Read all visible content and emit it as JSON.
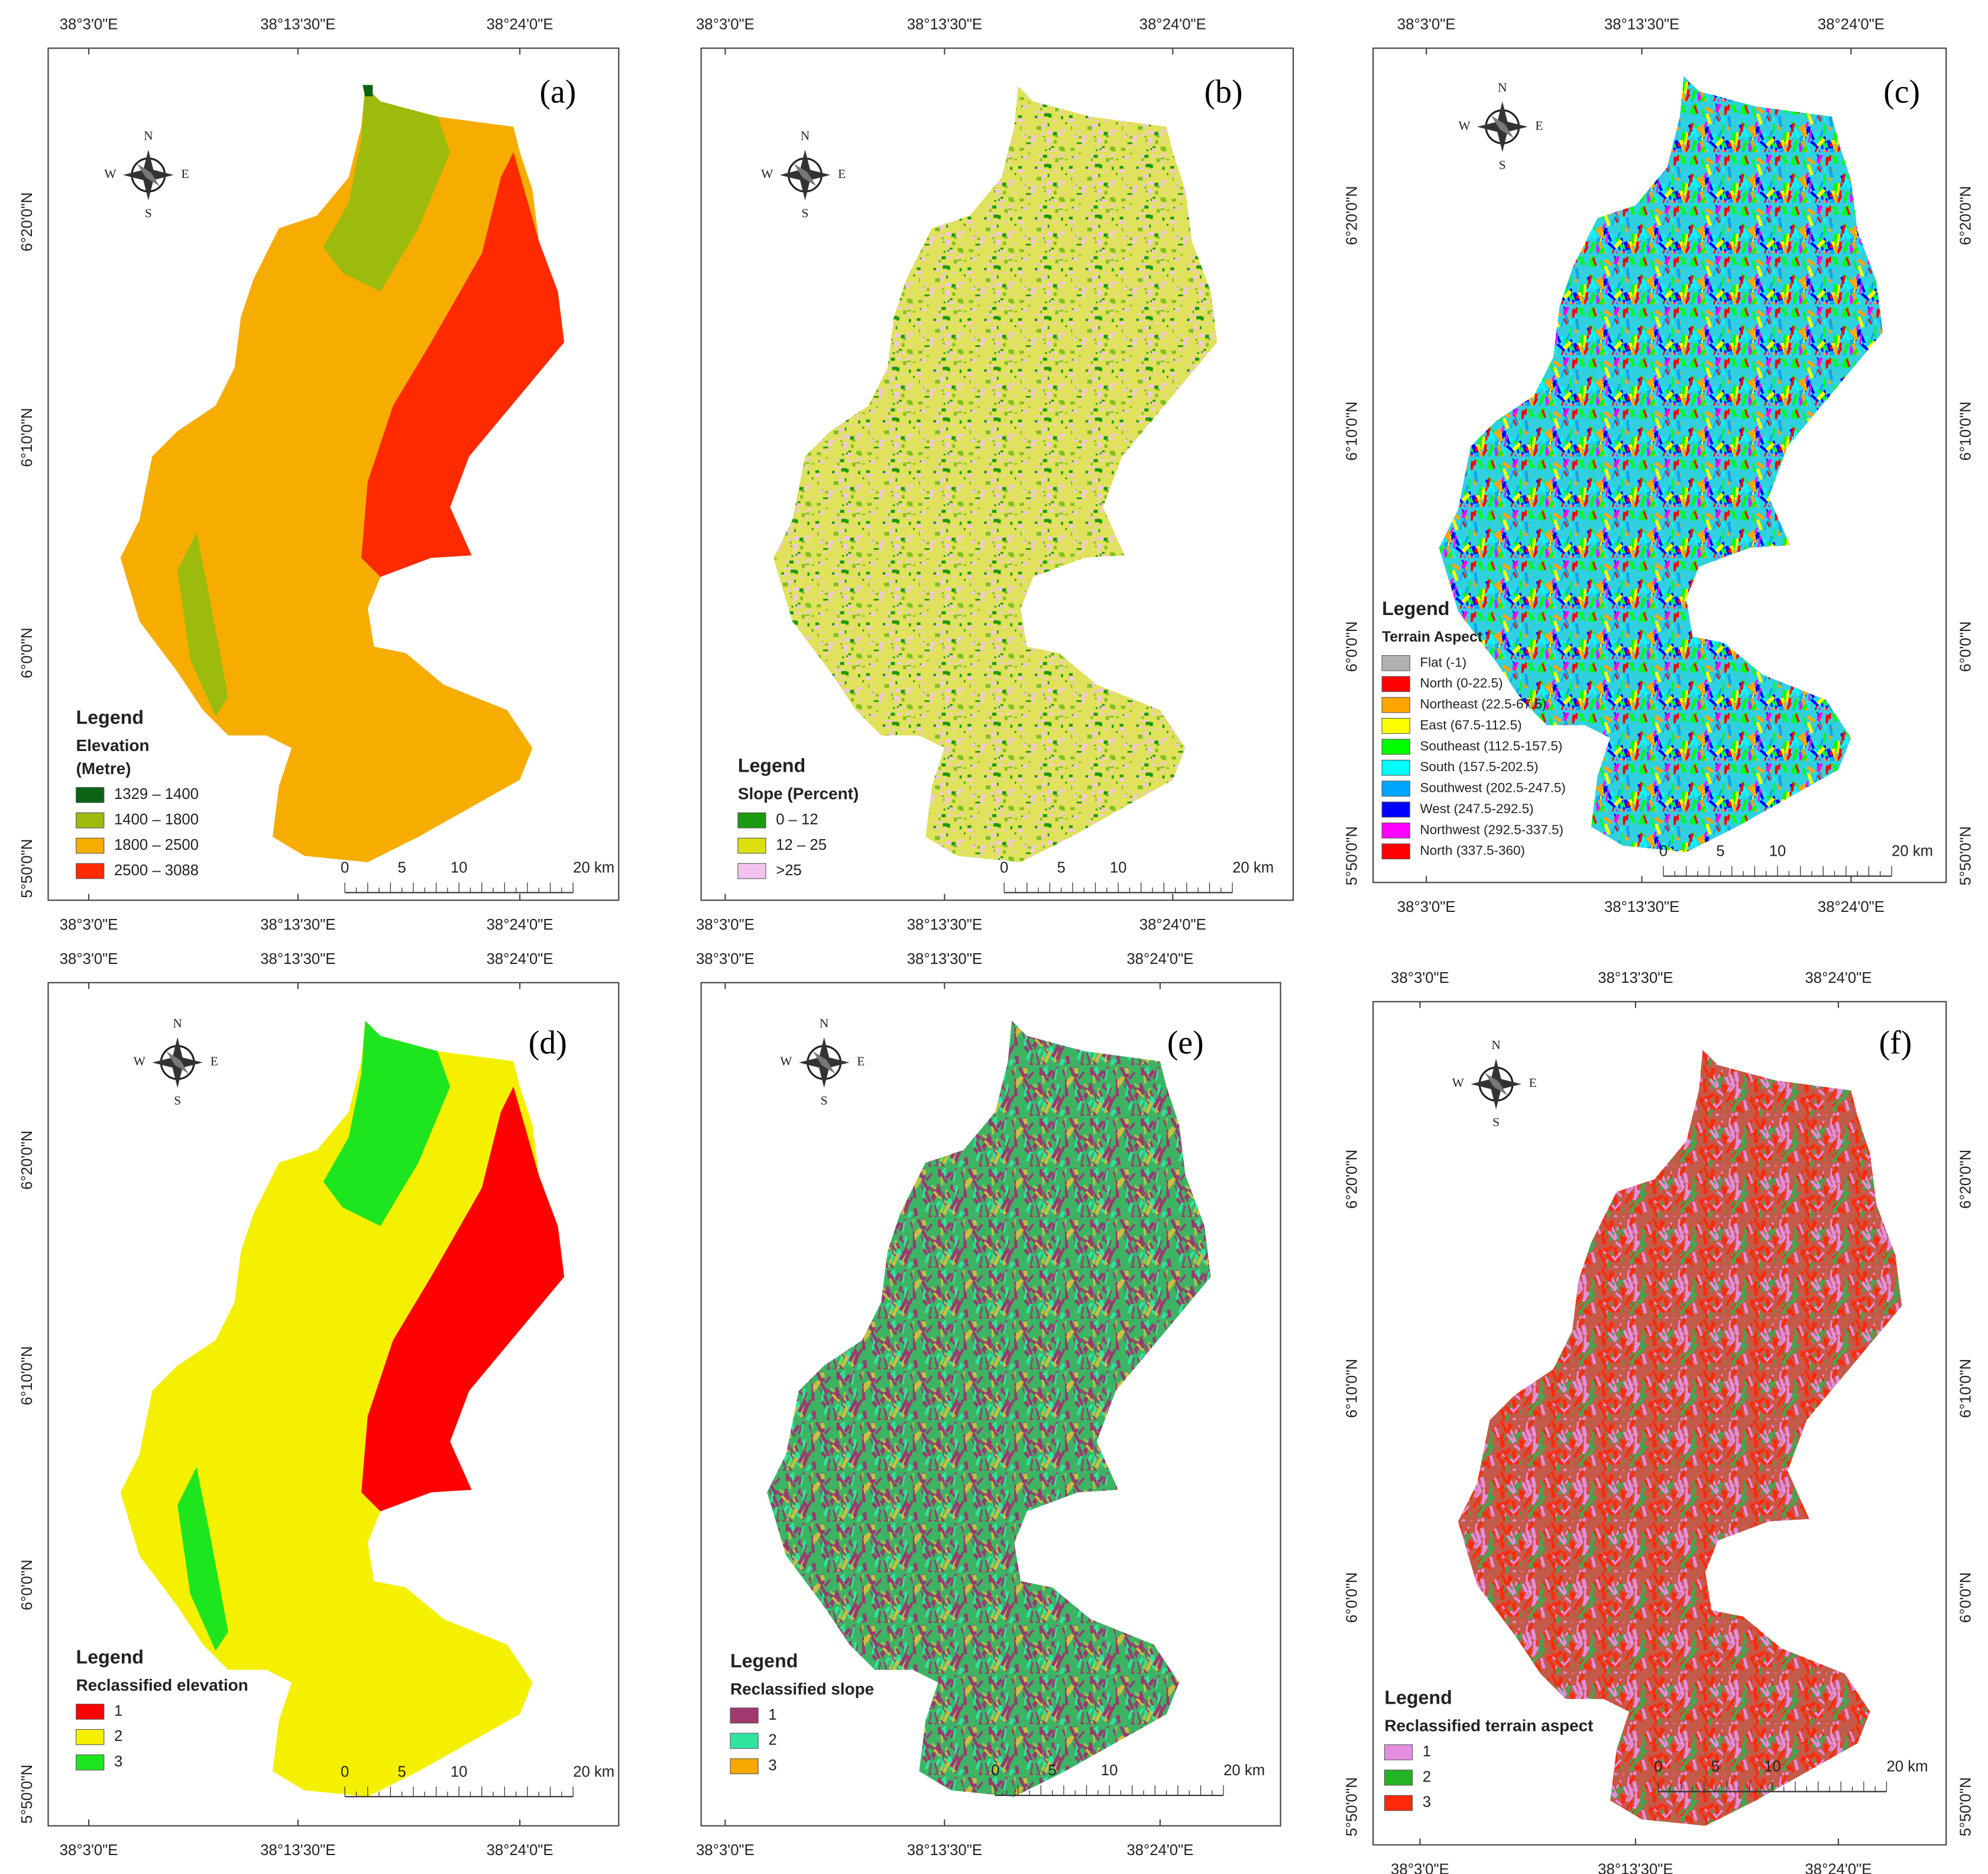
{
  "compass": {
    "n": "N",
    "e": "E",
    "s": "S",
    "w": "W"
  },
  "scale_bar": [
    "0",
    "5",
    "10",
    "20 km"
  ],
  "panels": [
    {
      "label": "(a)",
      "top_axis": [
        "38°3'0\"E",
        "38°13'30\"E",
        "38°24'0\"E"
      ],
      "bottom_axis": [
        "38°3'0\"E",
        "38°13'30\"E",
        "38°24'0\"E"
      ],
      "left_axis": [
        "6°20'0\"N",
        "6°10'0\"N",
        "6°0'0\"N",
        "5°50'0\"N"
      ],
      "legend": {
        "title": "Legend",
        "subtitle": [
          "Elevation",
          "(Metre)"
        ],
        "items": [
          {
            "label": "1329 – 1400",
            "color": "#0b6414"
          },
          {
            "label": "1400 – 1800",
            "color": "#9cbb0c"
          },
          {
            "label": "1800 – 2500",
            "color": "#f6ad00"
          },
          {
            "label": "2500 – 3088",
            "color": "#ff2a00"
          }
        ]
      }
    },
    {
      "label": "(b)",
      "top_axis": [
        "38°3'0\"E",
        "38°13'30\"E",
        "38°24'0\"E"
      ],
      "bottom_axis": [
        "38°3'0\"E",
        "38°13'30\"E",
        "38°24'0\"E"
      ],
      "legend": {
        "title": "Legend",
        "subtitle": [
          "Slope (Percent)"
        ],
        "items": [
          {
            "label": "0 – 12",
            "color": "#1a9a10"
          },
          {
            "label": "12 – 25",
            "color": "#dde010"
          },
          {
            "label": ">25",
            "color": "#f5c3f0"
          }
        ]
      }
    },
    {
      "label": "(c)",
      "top_axis": [
        "38°3'0\"E",
        "38°13'30\"E",
        "38°24'0\"E"
      ],
      "bottom_axis": [
        "38°3'0\"E",
        "38°13'30\"E",
        "38°24'0\"E"
      ],
      "left_axis": [
        "6°20'0\"N",
        "6°10'0\"N",
        "6°0'0\"N",
        "5°50'0\"N"
      ],
      "right_axis": [
        "6°20'0\"N",
        "6°10'0\"N",
        "6°0'0\"N",
        "5°50'0\"N"
      ],
      "legend": {
        "title": "Legend",
        "subtitle": [
          "Terrain Aspect"
        ],
        "items": [
          {
            "label": "Flat (-1)",
            "color": "#b2b2b2"
          },
          {
            "label": "North (0-22.5)",
            "color": "#ff0000"
          },
          {
            "label": "Northeast (22.5-67.5)",
            "color": "#ffa500"
          },
          {
            "label": "East (67.5-112.5)",
            "color": "#ffff00"
          },
          {
            "label": "Southeast (112.5-157.5)",
            "color": "#00ff00"
          },
          {
            "label": "South (157.5-202.5)",
            "color": "#00ffff"
          },
          {
            "label": "Southwest (202.5-247.5)",
            "color": "#00a5ff"
          },
          {
            "label": "West (247.5-292.5)",
            "color": "#0000ff"
          },
          {
            "label": "Northwest (292.5-337.5)",
            "color": "#ff00ff"
          },
          {
            "label": "North (337.5-360)",
            "color": "#ff0000"
          }
        ]
      }
    },
    {
      "label": "(d)",
      "top_axis": [
        "38°3'0\"E",
        "38°13'30\"E",
        "38°24'0\"E"
      ],
      "bottom_axis": [
        "38°3'0\"E",
        "38°13'30\"E",
        "38°24'0\"E"
      ],
      "left_axis": [
        "6°20'0\"N",
        "6°10'0\"N",
        "6°0'0\"N",
        "5°50'0\"N"
      ],
      "legend": {
        "title": "Legend",
        "subtitle": [
          "Reclassified elevation"
        ],
        "items": [
          {
            "label": "1",
            "color": "#ff0000"
          },
          {
            "label": "2",
            "color": "#f5f000"
          },
          {
            "label": "3",
            "color": "#1ee61e"
          }
        ]
      }
    },
    {
      "label": "(e)",
      "top_axis": [
        "38°3'0\"E",
        "38°13'30\"E",
        "38°24'0\"E"
      ],
      "bottom_axis": [
        "38°3'0\"E",
        "38°13'30\"E",
        "38°24'0\"E"
      ],
      "legend": {
        "title": "Legend",
        "subtitle": [
          "Reclassified slope"
        ],
        "items": [
          {
            "label": "1",
            "color": "#a03a6e"
          },
          {
            "label": "2",
            "color": "#2ee6a0"
          },
          {
            "label": "3",
            "color": "#f5a800"
          }
        ]
      }
    },
    {
      "label": "(f)",
      "top_axis": [
        "38°3'0\"E",
        "38°13'30\"E",
        "38°24'0\"E"
      ],
      "bottom_axis": [
        "38°3'0\"E",
        "38°13'30\"E",
        "38°24'0\"E"
      ],
      "left_axis": [
        "6°20'0\"N",
        "6°10'0\"N",
        "6°0'0\"N",
        "5°50'0\"N"
      ],
      "right_axis": [
        "6°20'0\"N",
        "6°10'0\"N",
        "6°0'0\"N",
        "5°50'0\"N"
      ],
      "legend": {
        "title": "Legend",
        "subtitle": [
          "Reclassified terrain aspect"
        ],
        "items": [
          {
            "label": "1",
            "color": "#e48ee0"
          },
          {
            "label": "2",
            "color": "#22b422"
          },
          {
            "label": "3",
            "color": "#ff2a0a"
          }
        ]
      }
    }
  ]
}
